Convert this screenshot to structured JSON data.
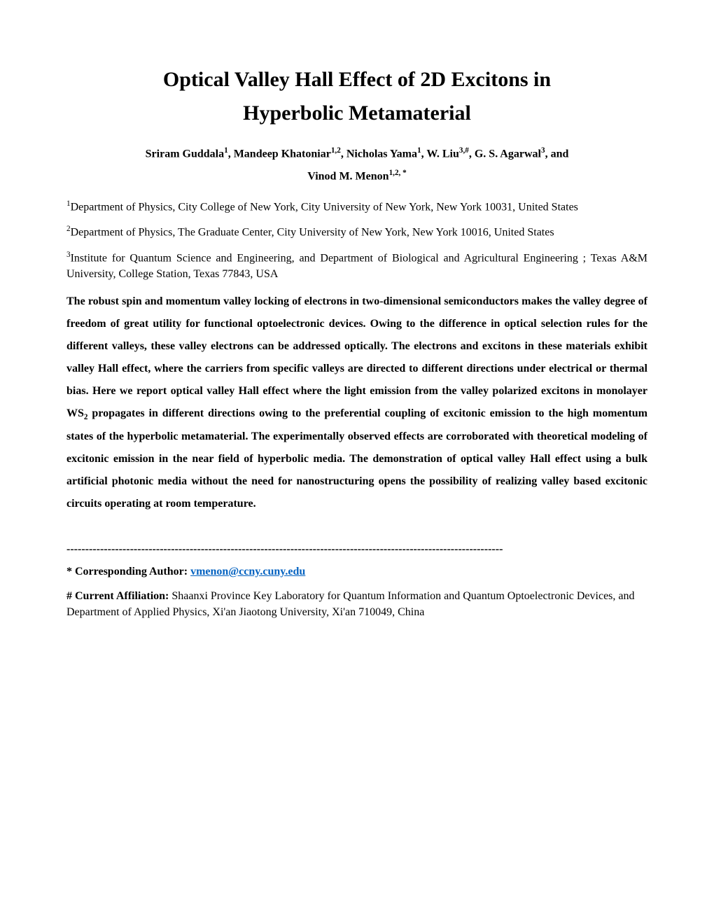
{
  "title_line1": "Optical Valley Hall Effect of 2D Excitons in",
  "title_line2": "Hyperbolic Metamaterial",
  "authors": {
    "a1_name": "Sriram Guddala",
    "a1_sup": "1",
    "a2_name": "Mandeep Khatoniar",
    "a2_sup": "1,2",
    "a3_name": "Nicholas Yama",
    "a3_sup": "1",
    "a4_name": "W. Liu",
    "a4_sup": "3,#",
    "a5_name": "G. S. Agarwal",
    "a5_sup": "3",
    "a6_name": "Vinod M. Menon",
    "a6_sup": "1,2, *",
    "and": ", and"
  },
  "affiliations": {
    "aff1_sup": "1",
    "aff1_text": "Department of Physics, City College of New York, City University of New York, New York 10031, United States",
    "aff2_sup": "2",
    "aff2_text": "Department of Physics, The Graduate Center, City University of New York, New York 10016, United States",
    "aff3_sup": "3",
    "aff3_text": "Institute for Quantum Science and Engineering, and Department of Biological and Agricultural Engineering ; Texas A&M University, College Station, Texas 77843, USA"
  },
  "abstract_p1": "The robust spin and momentum valley locking of electrons in two-dimensional semiconductors makes the valley degree of freedom of great utility for functional optoelectronic devices. Owing to the difference in optical selection rules for the different valleys, these valley electrons can be addressed optically. The electrons and excitons in these materials exhibit valley Hall effect, where the carriers from specific valleys are directed to different directions under electrical or thermal bias. Here we report optical valley Hall effect where the light emission from the valley polarized excitons in monolayer WS",
  "abstract_sub": "2",
  "abstract_p2": " propagates in different directions owing to the preferential coupling of excitonic emission to the high momentum states of the hyperbolic metamaterial. The experimentally observed effects are corroborated with theoretical modeling of excitonic emission in the near field of hyperbolic media. The demonstration of optical valley Hall effect using a bulk artificial photonic media without the need for nanostructuring opens the possibility of realizing valley based excitonic circuits operating at room temperature.",
  "divider": "---------------------------------------------------------------------------------------------------------------------",
  "corresponding": {
    "label": "* Corresponding Author: ",
    "email": "vmenon@ccny.cuny.edu"
  },
  "current_affiliation": {
    "label": "# Current Affiliation: ",
    "text": "Shaanxi Province Key Laboratory for Quantum Information and Quantum Optoelectronic Devices, and Department of Applied Physics, Xi'an Jiaotong University, Xi'an 710049, China"
  },
  "colors": {
    "text": "#000000",
    "link": "#0563c1",
    "background": "#ffffff"
  },
  "typography": {
    "title_fontsize": 30,
    "body_fontsize": 16,
    "author_fontsize": 16,
    "font_family": "Times New Roman"
  }
}
